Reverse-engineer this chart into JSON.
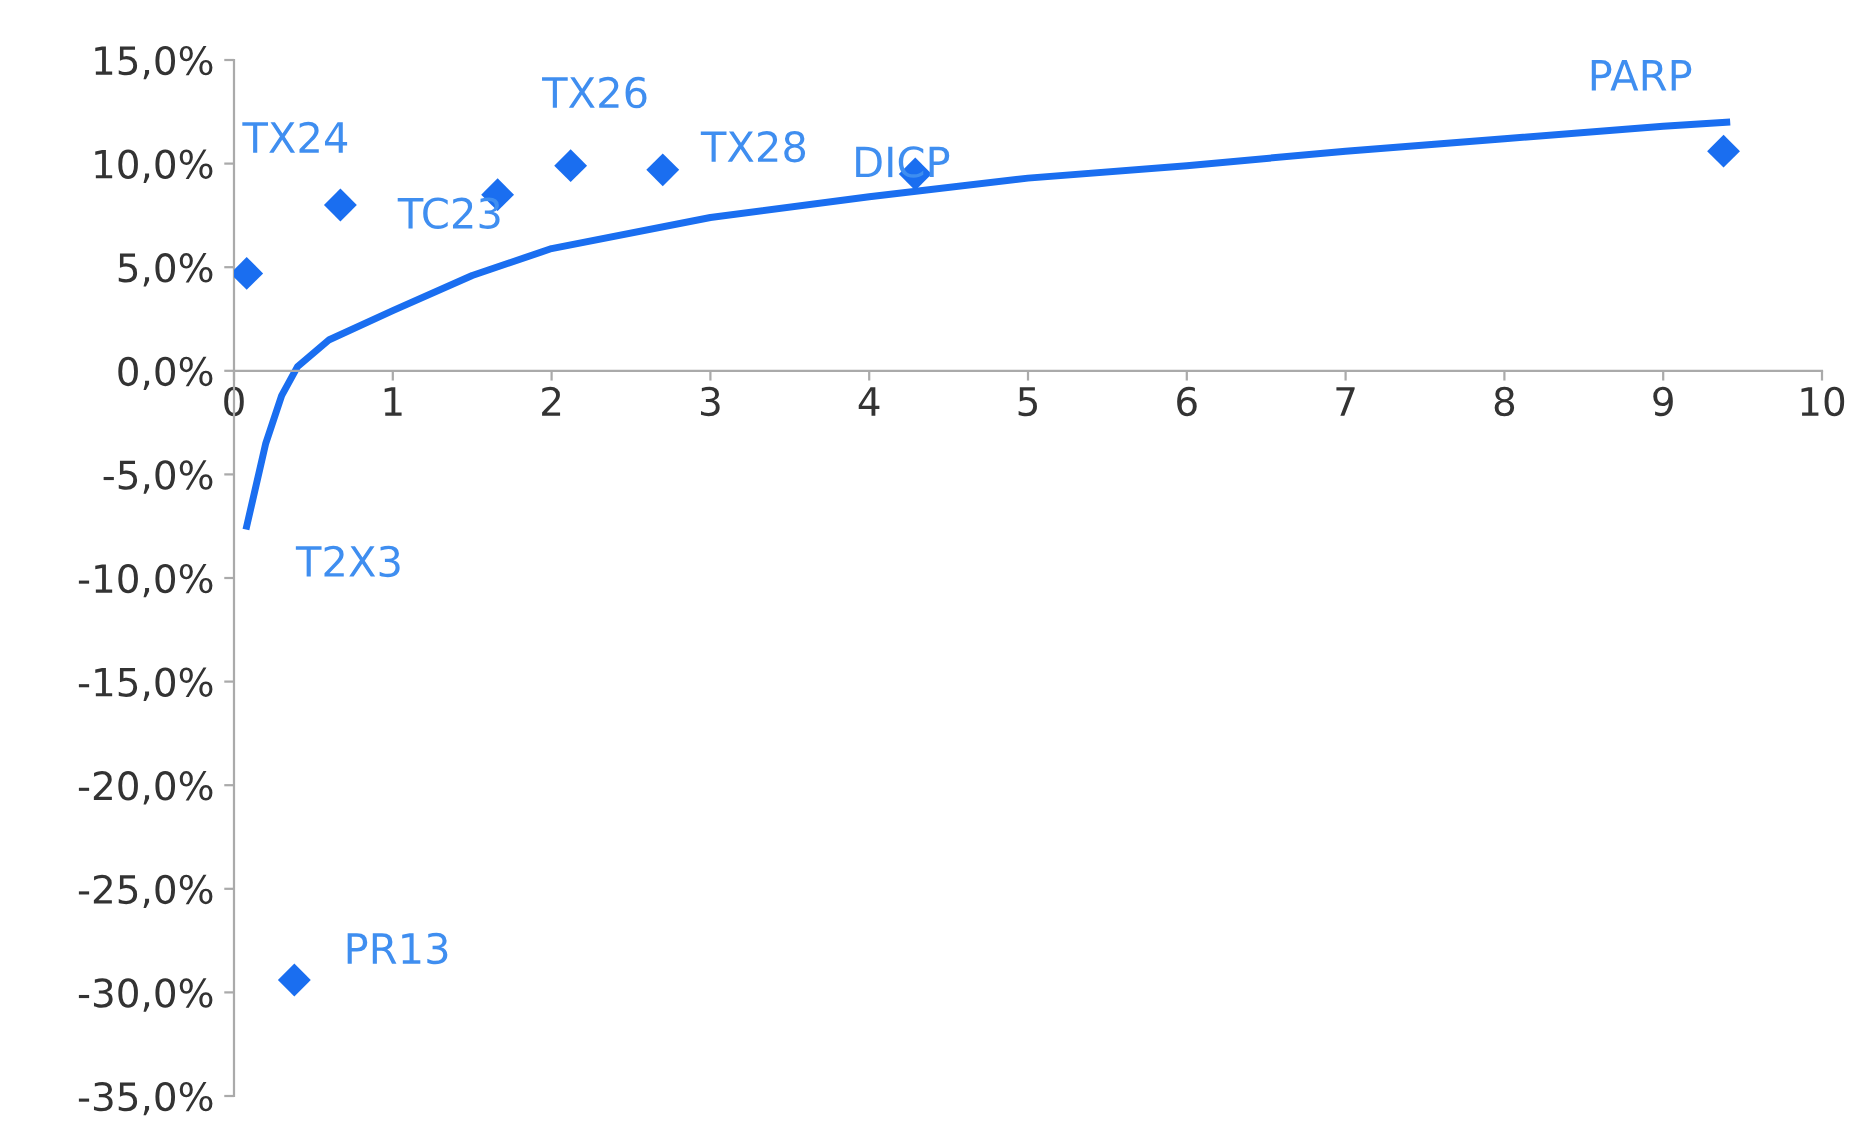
{
  "chart_data": {
    "type": "scatter",
    "xlim": [
      0,
      10
    ],
    "xticks": [
      0,
      1,
      2,
      3,
      4,
      5,
      6,
      7,
      8,
      9,
      10
    ],
    "ylim": [
      -35,
      15
    ],
    "yticks": [
      {
        "value": 15,
        "label": "15,0%"
      },
      {
        "value": 10,
        "label": "10,0%"
      },
      {
        "value": 5,
        "label": "5,0%"
      },
      {
        "value": 0,
        "label": "0,0%"
      },
      {
        "value": -5,
        "label": "-5,0%"
      },
      {
        "value": -10,
        "label": "-10,0%"
      },
      {
        "value": -15,
        "label": "-15,0%"
      },
      {
        "value": -20,
        "label": "-20,0%"
      },
      {
        "value": -25,
        "label": "-25,0%"
      },
      {
        "value": -30,
        "label": "-30,0%"
      },
      {
        "value": -35,
        "label": "-35,0%"
      }
    ],
    "grid": false,
    "legend": false,
    "series": [
      {
        "marker": "diamond",
        "color": "#1a6ef0",
        "x": [
          0.08,
          0.67,
          1.66,
          2.12,
          2.7,
          4.29,
          9.38,
          0.38
        ],
        "values": [
          4.7,
          8.0,
          8.5,
          9.9,
          9.7,
          9.5,
          10.6,
          -29.4
        ]
      },
      {
        "type": "line",
        "marker": "none",
        "line_style": "solid",
        "color": "#1a6ef0",
        "x": [
          0.08,
          0.2,
          0.3,
          0.4,
          0.6,
          1,
          1.5,
          2,
          3,
          4,
          5,
          6,
          7,
          8,
          9,
          9.4
        ],
        "values": [
          -7.5,
          -3.5,
          -1.2,
          0.2,
          1.5,
          2.9,
          4.6,
          5.9,
          7.4,
          8.4,
          9.3,
          9.9,
          10.6,
          11.2,
          11.8,
          12.0
        ]
      }
    ],
    "annotations": [
      {
        "text": "TX24",
        "x": 0.67,
        "y": 8.0
      },
      {
        "text": "TC23",
        "x": 1.66,
        "y": 8.5
      },
      {
        "text": "TX26",
        "x": 2.12,
        "y": 9.9
      },
      {
        "text": "TX28",
        "x": 2.7,
        "y": 9.7
      },
      {
        "text": "DICP",
        "x": 4.29,
        "y": 9.5
      },
      {
        "text": "PARP",
        "x": 9.38,
        "y": 10.6
      },
      {
        "text": "T2X3",
        "x": 0.08,
        "y": -7.5
      },
      {
        "text": "PR13",
        "x": 0.38,
        "y": -29.4
      }
    ]
  }
}
